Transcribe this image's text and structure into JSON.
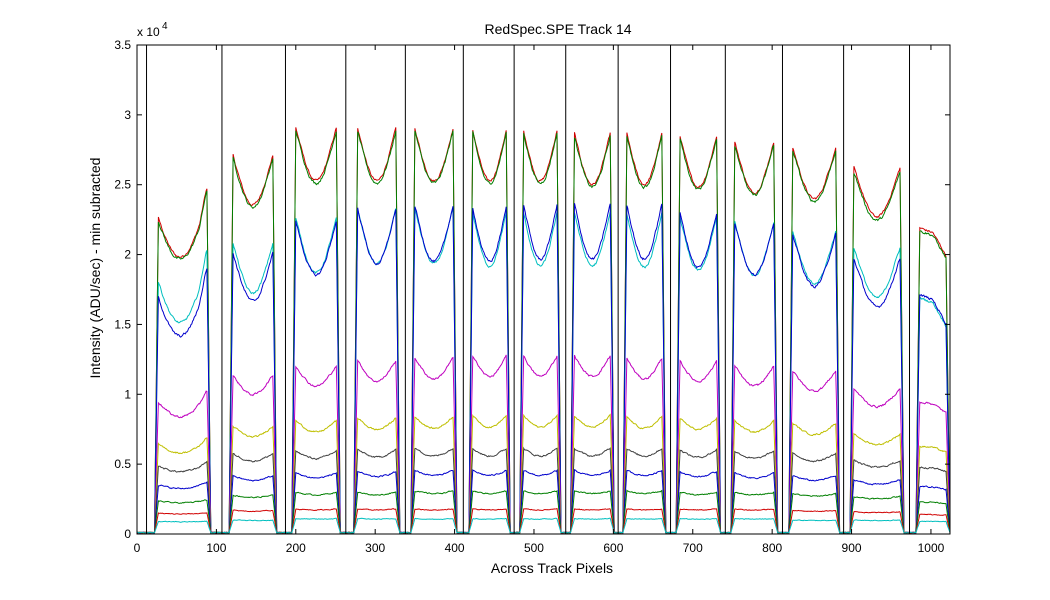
{
  "chart_data": {
    "type": "line",
    "title": "RedSpec.SPE   Track 14",
    "xlabel": "Across Track Pixels",
    "ylabel": "Intensity (ADU/sec) - min subracted",
    "y_exponent_label": "x 10",
    "y_exponent_power": "4",
    "xlim": [
      0,
      1024
    ],
    "ylim": [
      0,
      3.5
    ],
    "y_multiplier": 10000,
    "x_ticks": [
      0,
      100,
      200,
      300,
      400,
      500,
      600,
      700,
      800,
      900,
      1000
    ],
    "x_tick_labels": [
      "0",
      "100",
      "200",
      "300",
      "400",
      "500",
      "600",
      "700",
      "800",
      "900",
      "1000"
    ],
    "y_ticks": [
      0,
      0.5,
      1,
      1.5,
      2,
      2.5,
      3,
      3.5
    ],
    "y_tick_labels": [
      "0",
      "0.5",
      "1",
      "1.5",
      "2",
      "2.5",
      "3",
      "3.5"
    ],
    "grid": false,
    "vertical_markers_x": [
      12,
      107,
      187,
      263,
      338,
      411,
      475,
      540,
      606,
      672,
      741,
      813,
      890,
      973
    ],
    "segments": [
      {
        "x_start": 22,
        "x_end": 93,
        "shape": "rising"
      },
      {
        "x_start": 116,
        "x_end": 176,
        "shape": "dip"
      },
      {
        "x_start": 195,
        "x_end": 256,
        "shape": "dip"
      },
      {
        "x_start": 273,
        "x_end": 331,
        "shape": "dip"
      },
      {
        "x_start": 345,
        "x_end": 403,
        "shape": "dip"
      },
      {
        "x_start": 418,
        "x_end": 470,
        "shape": "dip"
      },
      {
        "x_start": 482,
        "x_end": 534,
        "shape": "dip"
      },
      {
        "x_start": 546,
        "x_end": 601,
        "shape": "dip"
      },
      {
        "x_start": 612,
        "x_end": 666,
        "shape": "dip"
      },
      {
        "x_start": 679,
        "x_end": 735,
        "shape": "dip"
      },
      {
        "x_start": 748,
        "x_end": 807,
        "shape": "dip"
      },
      {
        "x_start": 821,
        "x_end": 885,
        "shape": "dip"
      },
      {
        "x_start": 898,
        "x_end": 966,
        "shape": "dip"
      },
      {
        "x_start": 981,
        "x_end": 1024,
        "shape": "falling"
      }
    ],
    "series": [
      {
        "color": "#d00000",
        "segment_levels": [
          2.35,
          2.75,
          2.95,
          2.95,
          2.95,
          2.95,
          2.95,
          2.92,
          2.92,
          2.9,
          2.85,
          2.8,
          2.65,
          2.2
        ],
        "dip_depth": 0.13,
        "noise": 0.018
      },
      {
        "color": "#007f00",
        "segment_levels": [
          2.33,
          2.73,
          2.93,
          2.93,
          2.93,
          2.93,
          2.93,
          2.9,
          2.9,
          2.88,
          2.83,
          2.78,
          2.62,
          2.18
        ],
        "dip_depth": 0.13,
        "noise": 0.02
      },
      {
        "color": "#00bfbf",
        "segment_levels": [
          1.9,
          2.12,
          2.3,
          2.38,
          2.38,
          2.36,
          2.36,
          2.36,
          2.35,
          2.32,
          2.28,
          2.2,
          2.08,
          1.7
        ],
        "dip_depth": 0.17,
        "noise": 0.018
      },
      {
        "color": "#0000cc",
        "segment_levels": [
          1.78,
          2.05,
          2.28,
          2.38,
          2.4,
          2.4,
          2.42,
          2.42,
          2.42,
          2.35,
          2.28,
          2.18,
          2.0,
          1.72
        ],
        "dip_depth": 0.17,
        "noise": 0.02
      },
      {
        "color": "#bf00bf",
        "segment_levels": [
          0.98,
          1.15,
          1.22,
          1.26,
          1.28,
          1.3,
          1.3,
          1.3,
          1.28,
          1.26,
          1.22,
          1.18,
          1.05,
          0.95
        ],
        "dip_depth": 0.12,
        "noise": 0.015
      },
      {
        "color": "#bfbf00",
        "segment_levels": [
          0.66,
          0.78,
          0.82,
          0.84,
          0.85,
          0.86,
          0.86,
          0.86,
          0.85,
          0.84,
          0.82,
          0.8,
          0.72,
          0.63
        ],
        "dip_depth": 0.1,
        "noise": 0.012
      },
      {
        "color": "#404040",
        "segment_levels": [
          0.5,
          0.58,
          0.6,
          0.61,
          0.62,
          0.62,
          0.62,
          0.62,
          0.62,
          0.61,
          0.6,
          0.58,
          0.53,
          0.48
        ],
        "dip_depth": 0.09,
        "noise": 0.012
      },
      {
        "color": "#0000cc",
        "segment_levels": [
          0.36,
          0.42,
          0.44,
          0.45,
          0.46,
          0.46,
          0.46,
          0.46,
          0.46,
          0.45,
          0.44,
          0.42,
          0.39,
          0.34
        ],
        "dip_depth": 0.08,
        "noise": 0.01
      },
      {
        "color": "#007f00",
        "segment_levels": [
          0.24,
          0.28,
          0.3,
          0.3,
          0.31,
          0.31,
          0.31,
          0.31,
          0.31,
          0.3,
          0.3,
          0.29,
          0.27,
          0.23
        ],
        "dip_depth": 0.06,
        "noise": 0.008
      },
      {
        "color": "#d00000",
        "segment_levels": [
          0.15,
          0.17,
          0.18,
          0.18,
          0.18,
          0.18,
          0.18,
          0.18,
          0.18,
          0.18,
          0.18,
          0.17,
          0.16,
          0.14
        ],
        "dip_depth": 0.04,
        "noise": 0.006
      },
      {
        "color": "#00bfbf",
        "segment_levels": [
          0.09,
          0.1,
          0.11,
          0.11,
          0.11,
          0.11,
          0.11,
          0.11,
          0.11,
          0.11,
          0.11,
          0.1,
          0.1,
          0.09
        ],
        "dip_depth": 0.03,
        "noise": 0.005
      }
    ]
  }
}
